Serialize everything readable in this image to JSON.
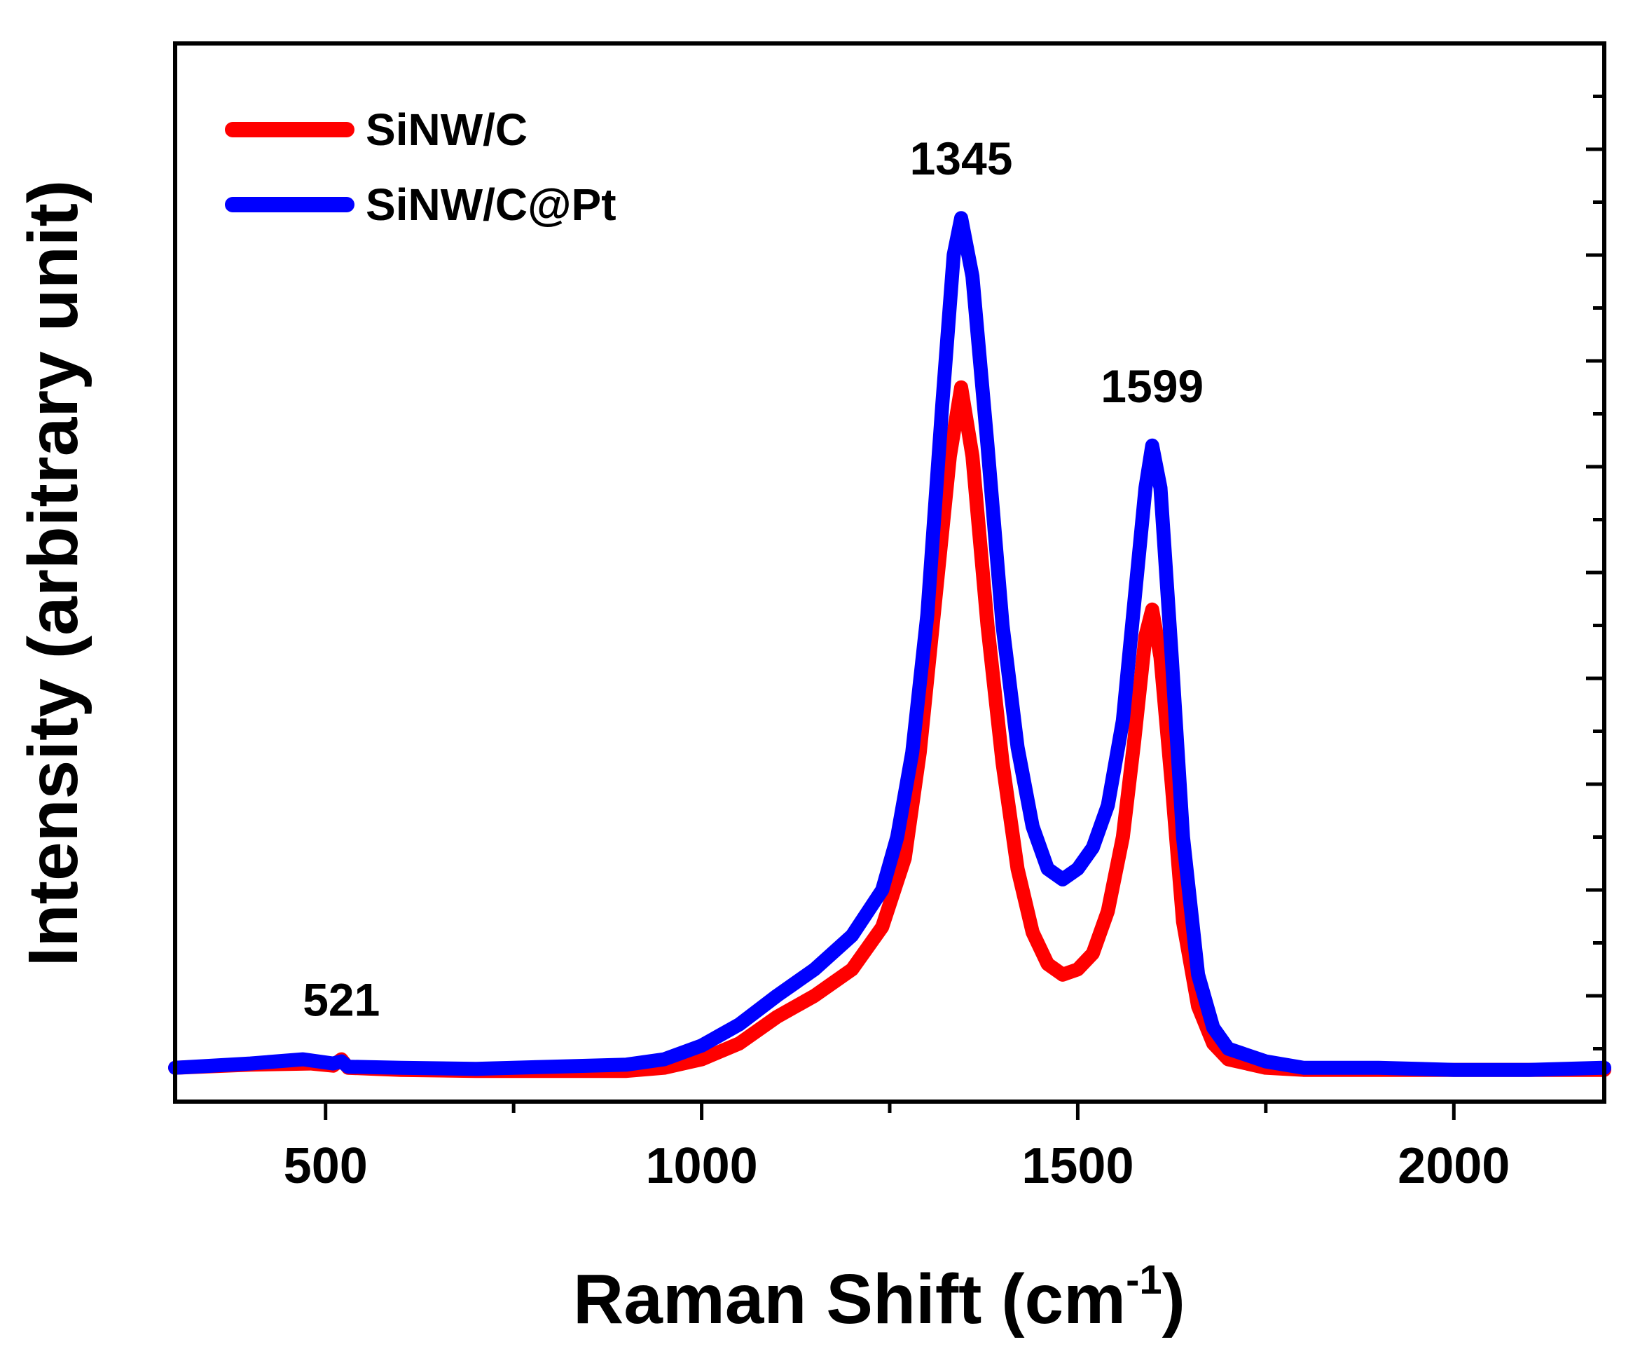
{
  "chart_data": {
    "type": "line",
    "title": "",
    "xlabel": "Raman Shift (cm",
    "xlabel_sup": "-1",
    "xlabel_close": ")",
    "ylabel": "Intensity (arbitrary unit)",
    "xlim": [
      300,
      2200
    ],
    "ylim": [
      0,
      100
    ],
    "x_ticks": [
      500,
      1000,
      1500,
      2000
    ],
    "x_tick_labels": [
      "500",
      "1000",
      "1500",
      "2000"
    ],
    "y_tick_labels_shown": false,
    "legend_position": "top-left",
    "series": [
      {
        "name": "SiNW/C",
        "color": "#ff0000",
        "points": [
          [
            300,
            3.2
          ],
          [
            400,
            3.5
          ],
          [
            480,
            3.6
          ],
          [
            510,
            3.4
          ],
          [
            521,
            4.0
          ],
          [
            530,
            3.2
          ],
          [
            600,
            3.0
          ],
          [
            700,
            2.9
          ],
          [
            800,
            2.9
          ],
          [
            900,
            2.9
          ],
          [
            950,
            3.2
          ],
          [
            1000,
            4.0
          ],
          [
            1050,
            5.5
          ],
          [
            1100,
            8.0
          ],
          [
            1150,
            10.0
          ],
          [
            1200,
            12.5
          ],
          [
            1240,
            16.5
          ],
          [
            1270,
            23.0
          ],
          [
            1290,
            33.0
          ],
          [
            1310,
            47.0
          ],
          [
            1330,
            61.0
          ],
          [
            1345,
            67.5
          ],
          [
            1360,
            61.0
          ],
          [
            1380,
            45.0
          ],
          [
            1400,
            32.0
          ],
          [
            1420,
            22.0
          ],
          [
            1440,
            16.0
          ],
          [
            1460,
            13.0
          ],
          [
            1480,
            12.0
          ],
          [
            1500,
            12.5
          ],
          [
            1520,
            14.0
          ],
          [
            1540,
            18.0
          ],
          [
            1560,
            25.0
          ],
          [
            1575,
            34.0
          ],
          [
            1590,
            44.0
          ],
          [
            1599,
            46.5
          ],
          [
            1610,
            42.0
          ],
          [
            1625,
            30.0
          ],
          [
            1640,
            17.0
          ],
          [
            1660,
            9.0
          ],
          [
            1680,
            5.5
          ],
          [
            1700,
            4.0
          ],
          [
            1750,
            3.2
          ],
          [
            1800,
            3.0
          ],
          [
            1900,
            3.0
          ],
          [
            2000,
            3.0
          ],
          [
            2100,
            3.0
          ],
          [
            2200,
            3.0
          ]
        ]
      },
      {
        "name": "SiNW/C@Pt",
        "color": "#0000ff",
        "points": [
          [
            300,
            3.2
          ],
          [
            400,
            3.6
          ],
          [
            470,
            4.0
          ],
          [
            510,
            3.6
          ],
          [
            521,
            3.8
          ],
          [
            530,
            3.3
          ],
          [
            600,
            3.2
          ],
          [
            700,
            3.1
          ],
          [
            800,
            3.3
          ],
          [
            900,
            3.5
          ],
          [
            950,
            4.0
          ],
          [
            1000,
            5.3
          ],
          [
            1050,
            7.3
          ],
          [
            1100,
            10.0
          ],
          [
            1150,
            12.5
          ],
          [
            1200,
            15.7
          ],
          [
            1240,
            20.0
          ],
          [
            1260,
            25.0
          ],
          [
            1280,
            33.0
          ],
          [
            1300,
            46.0
          ],
          [
            1320,
            66.0
          ],
          [
            1335,
            80.0
          ],
          [
            1345,
            83.5
          ],
          [
            1360,
            78.0
          ],
          [
            1380,
            62.0
          ],
          [
            1400,
            45.0
          ],
          [
            1420,
            33.5
          ],
          [
            1440,
            26.0
          ],
          [
            1460,
            22.0
          ],
          [
            1480,
            21.0
          ],
          [
            1500,
            22.0
          ],
          [
            1520,
            24.0
          ],
          [
            1540,
            28.0
          ],
          [
            1560,
            36.0
          ],
          [
            1575,
            47.0
          ],
          [
            1590,
            58.0
          ],
          [
            1599,
            62.0
          ],
          [
            1610,
            58.0
          ],
          [
            1625,
            42.0
          ],
          [
            1640,
            25.0
          ],
          [
            1660,
            12.0
          ],
          [
            1680,
            7.0
          ],
          [
            1700,
            5.0
          ],
          [
            1750,
            3.8
          ],
          [
            1800,
            3.2
          ],
          [
            1900,
            3.2
          ],
          [
            2000,
            3.0
          ],
          [
            2100,
            3.0
          ],
          [
            2200,
            3.2
          ]
        ]
      }
    ],
    "annotations": [
      {
        "text": "521",
        "x": 521,
        "y": 4.0,
        "series": "SiNW/C"
      },
      {
        "text": "1345",
        "x": 1345,
        "y": 83.5,
        "series": "SiNW/C@Pt"
      },
      {
        "text": "1599",
        "x": 1599,
        "y": 62.0,
        "series": "SiNW/C@Pt"
      }
    ]
  }
}
